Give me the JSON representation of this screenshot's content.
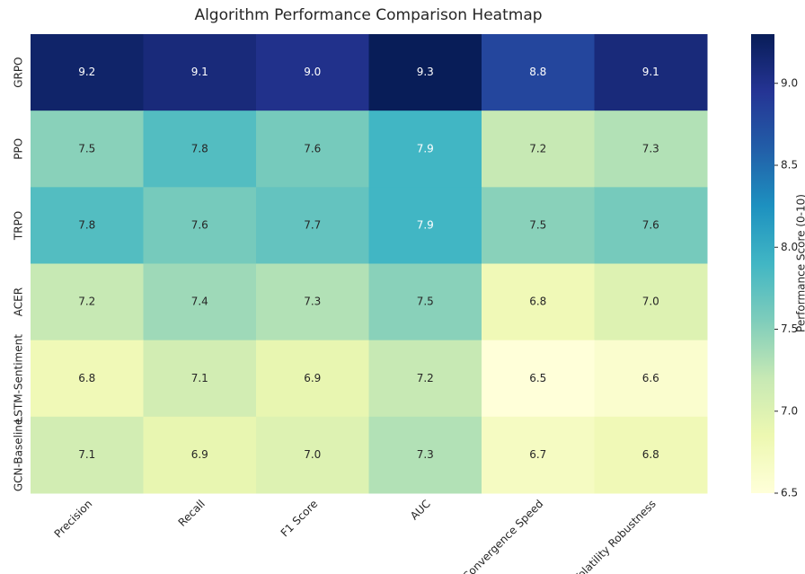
{
  "chart_data": {
    "type": "heatmap",
    "title": "Algorithm Performance Comparison Heatmap",
    "x_categories": [
      "Precision",
      "Recall",
      "F1 Score",
      "AUC",
      "Convergence Speed",
      "Volatility Robustness"
    ],
    "y_categories": [
      "GRPO",
      "PPO",
      "TRPO",
      "ACER",
      "LSTM-Sentiment",
      "GCN-Baseline"
    ],
    "values": [
      [
        9.2,
        9.1,
        9.0,
        9.3,
        8.8,
        9.1
      ],
      [
        7.5,
        7.8,
        7.6,
        7.9,
        7.2,
        7.3
      ],
      [
        7.8,
        7.6,
        7.7,
        7.9,
        7.5,
        7.6
      ],
      [
        7.2,
        7.4,
        7.3,
        7.5,
        6.8,
        7.0
      ],
      [
        6.8,
        7.1,
        6.9,
        7.2,
        6.5,
        6.6
      ],
      [
        7.1,
        6.9,
        7.0,
        7.3,
        6.7,
        6.8
      ]
    ],
    "value_labels": [
      [
        "9.2",
        "9.1",
        "9.0",
        "9.3",
        "8.8",
        "9.1"
      ],
      [
        "7.5",
        "7.8",
        "7.6",
        "7.9",
        "7.2",
        "7.3"
      ],
      [
        "7.8",
        "7.6",
        "7.7",
        "7.9",
        "7.5",
        "7.6"
      ],
      [
        "7.2",
        "7.4",
        "7.3",
        "7.5",
        "6.8",
        "7.0"
      ],
      [
        "6.8",
        "7.1",
        "6.9",
        "7.2",
        "6.5",
        "6.6"
      ],
      [
        "7.1",
        "6.9",
        "7.0",
        "7.3",
        "6.7",
        "6.8"
      ]
    ],
    "colormap": "YlGnBu",
    "colorbar_label": "Performance Score (0-10)",
    "clim": [
      6.5,
      9.3
    ],
    "cticks": [
      6.5,
      {
        "value": 7,
        "label": "7.0"
      },
      7.5,
      {
        "value": 8,
        "label": "8.0"
      },
      8.5,
      {
        "value": 9,
        "label": "9.0"
      }
    ]
  }
}
